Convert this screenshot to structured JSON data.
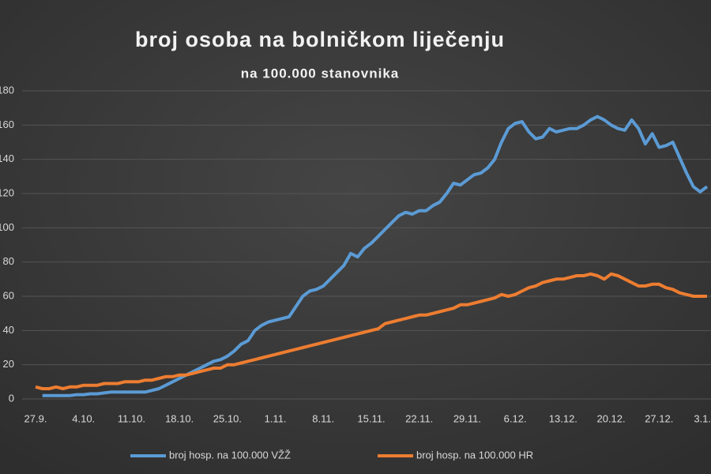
{
  "chart_data": {
    "type": "line",
    "title": "broj osoba na bolničkom liječenju",
    "subtitle": "na 100.000 stanovnika",
    "categories": [
      "27.9.",
      null,
      null,
      null,
      null,
      null,
      null,
      "4.10.",
      null,
      null,
      null,
      null,
      null,
      null,
      "11.10.",
      null,
      null,
      null,
      null,
      null,
      null,
      "18.10.",
      null,
      null,
      null,
      null,
      null,
      null,
      "25.10.",
      null,
      null,
      null,
      null,
      null,
      null,
      "1.11.",
      null,
      null,
      null,
      null,
      null,
      null,
      "8.11.",
      null,
      null,
      null,
      null,
      null,
      null,
      "15.11.",
      null,
      null,
      null,
      null,
      null,
      null,
      "22.11.",
      null,
      null,
      null,
      null,
      null,
      null,
      "29.11.",
      null,
      null,
      null,
      null,
      null,
      null,
      "6.12.",
      null,
      null,
      null,
      null,
      null,
      null,
      "13.12.",
      null,
      null,
      null,
      null,
      null,
      null,
      "20.12.",
      null,
      null,
      null,
      null,
      null,
      null,
      "27.12.",
      null,
      null,
      null,
      null,
      null,
      null,
      "3.1."
    ],
    "series": [
      {
        "name": "broj hosp. na 100.000 VŽŽ",
        "color": "#5b9bd5",
        "values": [
          null,
          2,
          2,
          2,
          2,
          2,
          2.5,
          2.5,
          3,
          3,
          3.5,
          4,
          4,
          4,
          4,
          4,
          4,
          5,
          6,
          8,
          10,
          12,
          14,
          16,
          18,
          20,
          22,
          23,
          25,
          28,
          32,
          34,
          40,
          43,
          45,
          46,
          47,
          48,
          54,
          60,
          63,
          64,
          66,
          70,
          74,
          78,
          85,
          83,
          88,
          91,
          95,
          99,
          103,
          107,
          109,
          108,
          110,
          110,
          113,
          115,
          120,
          126,
          125,
          128,
          131,
          132,
          135,
          140,
          150,
          158,
          161,
          162,
          156,
          152,
          153,
          158,
          156,
          157,
          158,
          158,
          160,
          163,
          165,
          163,
          160,
          158,
          157,
          163,
          158,
          149,
          155,
          147,
          148,
          150,
          141,
          132,
          124,
          121,
          124
        ]
      },
      {
        "name": "broj hosp. na 100.000 HR",
        "color": "#ed7d31",
        "values": [
          7,
          6,
          6,
          7,
          6,
          7,
          7,
          8,
          8,
          8,
          9,
          9,
          9,
          10,
          10,
          10,
          11,
          11,
          12,
          13,
          13,
          14,
          14,
          15,
          16,
          17,
          18,
          18,
          20,
          20,
          21,
          22,
          23,
          24,
          25,
          26,
          27,
          28,
          29,
          30,
          31,
          32,
          33,
          34,
          35,
          36,
          37,
          38,
          39,
          40,
          41,
          44,
          45,
          46,
          47,
          48,
          49,
          49,
          50,
          51,
          52,
          53,
          55,
          55,
          56,
          57,
          58,
          59,
          61,
          60,
          61,
          63,
          65,
          66,
          68,
          69,
          70,
          70,
          71,
          72,
          72,
          73,
          72,
          70,
          73,
          72,
          70,
          68,
          66,
          66,
          67,
          67,
          65,
          64,
          62,
          61,
          60,
          60,
          60
        ]
      }
    ],
    "ylim": [
      0,
      180
    ],
    "yticks": [
      0,
      20,
      40,
      60,
      80,
      100,
      120,
      140,
      160,
      180
    ],
    "grid": true,
    "legend": "bottom"
  }
}
